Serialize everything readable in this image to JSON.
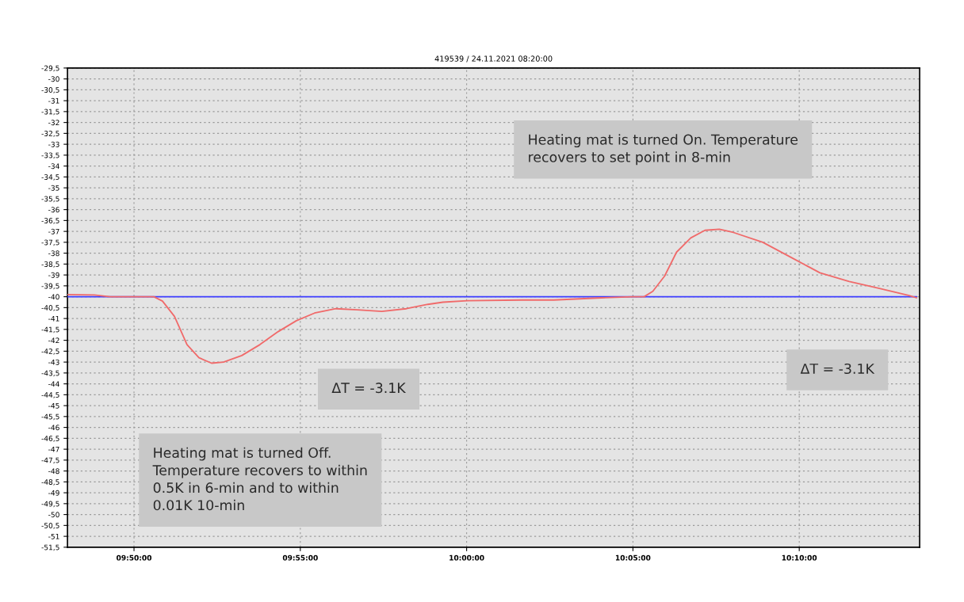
{
  "chart_data": {
    "type": "line",
    "title": "419539 / 24.11.2021 08:20:00",
    "series": [
      {
        "color": "#f06a6a",
        "x": [
          9.8,
          9.8135,
          9.8214,
          9.8413,
          9.8433,
          9.8476,
          9.8536,
          9.8599,
          9.8659,
          9.8722,
          9.8782,
          9.8873,
          9.8964,
          9.9056,
          9.9147,
          9.9238,
          9.9345,
          9.9452,
          9.9575,
          9.9698,
          9.9806,
          9.9881,
          10.0004,
          10.0278,
          10.0437,
          10.0675,
          10.0833,
          10.0889,
          10.0933,
          10.0992,
          10.1052,
          10.1123,
          10.1194,
          10.1266,
          10.1337,
          10.1484,
          10.1627,
          10.177,
          10.1917,
          10.206,
          10.2218,
          10.2254
        ],
        "values": [
          -39.9,
          -39.92,
          -40.0,
          -40.0,
          -40.0,
          -40.2,
          -40.9,
          -42.2,
          -42.8,
          -43.05,
          -43.0,
          -42.7,
          -42.2,
          -41.6,
          -41.1,
          -40.75,
          -40.55,
          -40.6,
          -40.67,
          -40.55,
          -40.35,
          -40.25,
          -40.18,
          -40.15,
          -40.15,
          -40.05,
          -40.0,
          -40.0,
          -39.75,
          -39.05,
          -37.95,
          -37.3,
          -36.95,
          -36.9,
          -37.05,
          -37.5,
          -38.2,
          -38.9,
          -39.3,
          -39.6,
          -39.95,
          -40.05
        ]
      },
      {
        "color": "#3c3cff",
        "x": [
          9.8,
          10.2254
        ],
        "values": [
          -40.0,
          -40.0
        ]
      }
    ],
    "xlim": [
      9.8,
      10.227
    ],
    "ylim": [
      -51.5,
      -29.5
    ],
    "xticks": [
      {
        "value": 9.833333,
        "label": "09:50:00"
      },
      {
        "value": 9.916667,
        "label": "09:55:00"
      },
      {
        "value": 10.0,
        "label": "10:00:00"
      },
      {
        "value": 10.083333,
        "label": "10:05:00"
      },
      {
        "value": 10.166667,
        "label": "10:10:00"
      }
    ],
    "yticks": [
      {
        "value": -29.5,
        "label": "-29,5"
      },
      -30,
      {
        "value": -30.5,
        "label": "-30,5"
      },
      -31,
      {
        "value": -31.5,
        "label": "-31,5"
      },
      -32,
      {
        "value": -32.5,
        "label": "-32,5"
      },
      -33,
      {
        "value": -33.5,
        "label": "-33,5"
      },
      -34,
      {
        "value": -34.5,
        "label": "-34,5"
      },
      -35,
      {
        "value": -35.5,
        "label": "-35,5"
      },
      -36,
      {
        "value": -36.5,
        "label": "-36,5"
      },
      -37,
      {
        "value": -37.5,
        "label": "-37,5"
      },
      -38,
      {
        "value": -38.5,
        "label": "-38,5"
      },
      -39,
      {
        "value": -39.5,
        "label": "-39,5"
      },
      -40,
      {
        "value": -40.5,
        "label": "-40,5"
      },
      -41,
      {
        "value": -41.5,
        "label": "-41,5"
      },
      -42,
      {
        "value": -42.5,
        "label": "-42,5"
      },
      -43,
      {
        "value": -43.5,
        "label": "-43,5"
      },
      -44,
      {
        "value": -44.5,
        "label": "-44,5"
      },
      -45,
      {
        "value": -45.5,
        "label": "-45,5"
      },
      -46,
      {
        "value": -46.5,
        "label": "-46,5"
      },
      -47,
      {
        "value": -47.5,
        "label": "-47,5"
      },
      -48,
      {
        "value": -48.5,
        "label": "-48,5"
      },
      -49,
      {
        "value": -49.5,
        "label": "-49,5"
      },
      -50,
      {
        "value": -50.5,
        "label": "-50,5"
      },
      -51,
      {
        "value": -51.5,
        "label": "-51,5"
      }
    ],
    "grid": true,
    "marker": "none",
    "line_style": "solid",
    "annotations": [
      "Heating mat is turned On. Temperature\nrecovers to set point in 8-min",
      "ΔT = -3.1K",
      "ΔT = -3.1K",
      "Heating mat is turned Off.\nTemperature recovers to within\n0.5K in 6-min and to within\n0.01K 10-min"
    ]
  }
}
